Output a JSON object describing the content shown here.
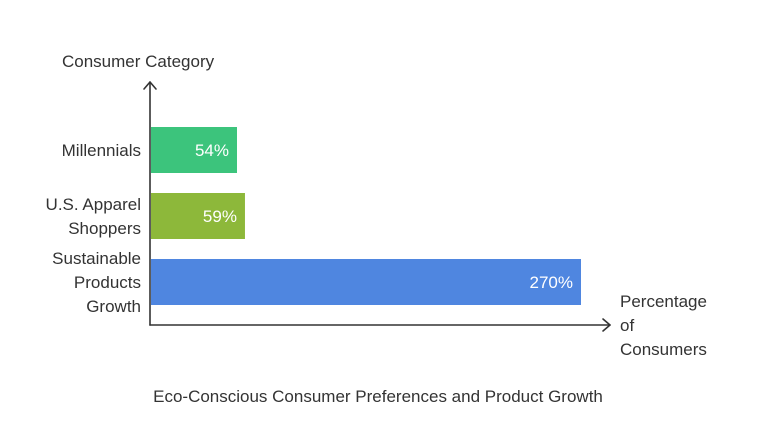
{
  "chart_data": {
    "type": "bar",
    "orientation": "horizontal",
    "title": "Eco-Conscious Consumer Preferences and Product Growth",
    "ylabel": "Consumer Category",
    "xlabel": [
      "Percentage",
      "of",
      "Consumers"
    ],
    "categories": [
      [
        "Millennials"
      ],
      [
        "U.S. Apparel",
        "Shoppers"
      ],
      [
        "Sustainable",
        "Products",
        "Growth"
      ]
    ],
    "values": [
      54,
      59,
      270
    ],
    "value_labels": [
      "54%",
      "59%",
      "270%"
    ],
    "colors": [
      "#3cc47c",
      "#8db83a",
      "#4f86e0"
    ],
    "xlim": [
      0,
      300
    ],
    "grid": false,
    "legend": "none"
  }
}
